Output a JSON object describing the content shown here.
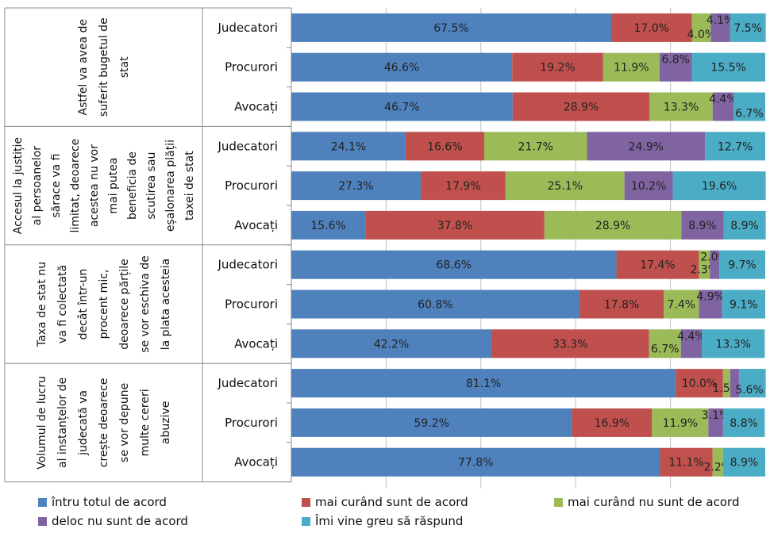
{
  "chart_data": {
    "type": "bar",
    "orientation": "horizontal",
    "stacked": true,
    "percent": true,
    "xlim": [
      0,
      100
    ],
    "grid": true,
    "legend_position": "bottom",
    "groups": [
      {
        "label": "Astfel va avea de suferit bugetul de stat",
        "rows": [
          {
            "category": "Judecatori",
            "values": [
              67.5,
              17.0,
              4.0,
              4.1,
              7.5
            ]
          },
          {
            "category": "Procurori",
            "values": [
              46.6,
              19.2,
              11.9,
              6.8,
              15.5
            ]
          },
          {
            "category": "Avocați",
            "values": [
              46.7,
              28.9,
              13.3,
              4.4,
              6.7
            ]
          }
        ]
      },
      {
        "label": "Accesul la justiție al persoanelor sărace va fi limitat, deoarece acestea nu vor mai putea beneficia de scutirea sau eșalonarea plății taxei de stat",
        "rows": [
          {
            "category": "Judecatori",
            "values": [
              24.1,
              16.6,
              21.7,
              24.9,
              12.7
            ]
          },
          {
            "category": "Procurori",
            "values": [
              27.3,
              17.9,
              25.1,
              10.2,
              19.6
            ]
          },
          {
            "category": "Avocați",
            "values": [
              15.6,
              37.8,
              28.9,
              8.9,
              8.9
            ]
          }
        ]
      },
      {
        "label": "Taxa de stat nu va fi colectată decât într-un procent mic, deoarece părțile se vor eschiva de la plata acesteia",
        "rows": [
          {
            "category": "Judecatori",
            "values": [
              68.6,
              17.4,
              2.3,
              2.0,
              9.7
            ]
          },
          {
            "category": "Procurori",
            "values": [
              60.8,
              17.8,
              7.4,
              4.9,
              9.1
            ]
          },
          {
            "category": "Avocați",
            "values": [
              42.2,
              33.3,
              6.7,
              4.4,
              13.3
            ]
          }
        ]
      },
      {
        "label": "Volumul de lucru al instanțelor de judecată va crește deoarece se vor depune multe cereri abuzive",
        "rows": [
          {
            "category": "Judecatori",
            "values": [
              81.1,
              10.0,
              1.5,
              1.9,
              5.6
            ]
          },
          {
            "category": "Procurori",
            "values": [
              59.2,
              16.9,
              11.9,
              3.1,
              8.8
            ]
          },
          {
            "category": "Avocați",
            "values": [
              77.8,
              11.1,
              2.2,
              0,
              8.9
            ]
          }
        ]
      }
    ],
    "series": [
      {
        "name": "întru totul de acord",
        "color": "#4f81bd"
      },
      {
        "name": "mai curând sunt de acord",
        "color": "#c0504d"
      },
      {
        "name": "mai curând nu sunt de acord",
        "color": "#9bbb59"
      },
      {
        "name": "deloc nu sunt de acord",
        "color": "#8064a2"
      },
      {
        "name": "Îmi vine greu să răspund",
        "color": "#4bacc6"
      }
    ],
    "group_label_lines": [
      [
        "Astfel va avea de",
        "suferit bugetul de",
        "stat"
      ],
      [
        "Accesul la justiție",
        "al persoanelor",
        "sărace va fi",
        "limitat, deoarece",
        "acestea nu vor",
        "mai putea",
        "beneficia de",
        "scutirea sau",
        "eșalonarea plății",
        "taxei de stat"
      ],
      [
        "Taxa de stat nu",
        "va fi colectată",
        "decât într-un",
        "procent mic,",
        "deoarece părțile",
        "se vor eschiva de",
        "la plata acesteia"
      ],
      [
        "Volumul de lucru",
        "al instanțelor de",
        "judecată va",
        "crește deoarece",
        "se vor depune",
        "multe cereri",
        "abuzive"
      ]
    ],
    "value_labels": [
      [
        "67.5%",
        "17.0%",
        "4.0%",
        "4.1%",
        "7.5%"
      ],
      [
        "46.6%",
        "19.2%",
        "11.9%",
        "6.8%",
        "15.5%"
      ],
      [
        "46.7%",
        "28.9%",
        "13.3%",
        "4.4%",
        "6.7%"
      ],
      [
        "24.1%",
        "16.6%",
        "21.7%",
        "24.9%",
        "12.7%"
      ],
      [
        "27.3%",
        "17.9%",
        "25.1%",
        "10.2%",
        "19.6%"
      ],
      [
        "15.6%",
        "37.8%",
        "28.9%",
        "8.9%",
        "8.9%"
      ],
      [
        "68.6%",
        "17.4%",
        "2.3%",
        "2.0%",
        "9.7%"
      ],
      [
        "60.8%",
        "17.8%",
        "7.4%",
        "4.9%",
        "9.1%"
      ],
      [
        "42.2%",
        "33.3%",
        "6.7%",
        "4.4%",
        "13.3%"
      ],
      [
        "81.1%",
        "10.0%",
        "1.5%",
        "",
        "5.6%"
      ],
      [
        "59.2%",
        "16.9%",
        "11.9%",
        "3.1%",
        "8.8%"
      ],
      [
        "77.8%",
        "11.1%",
        "2.2%",
        "",
        "8.9%"
      ]
    ]
  }
}
